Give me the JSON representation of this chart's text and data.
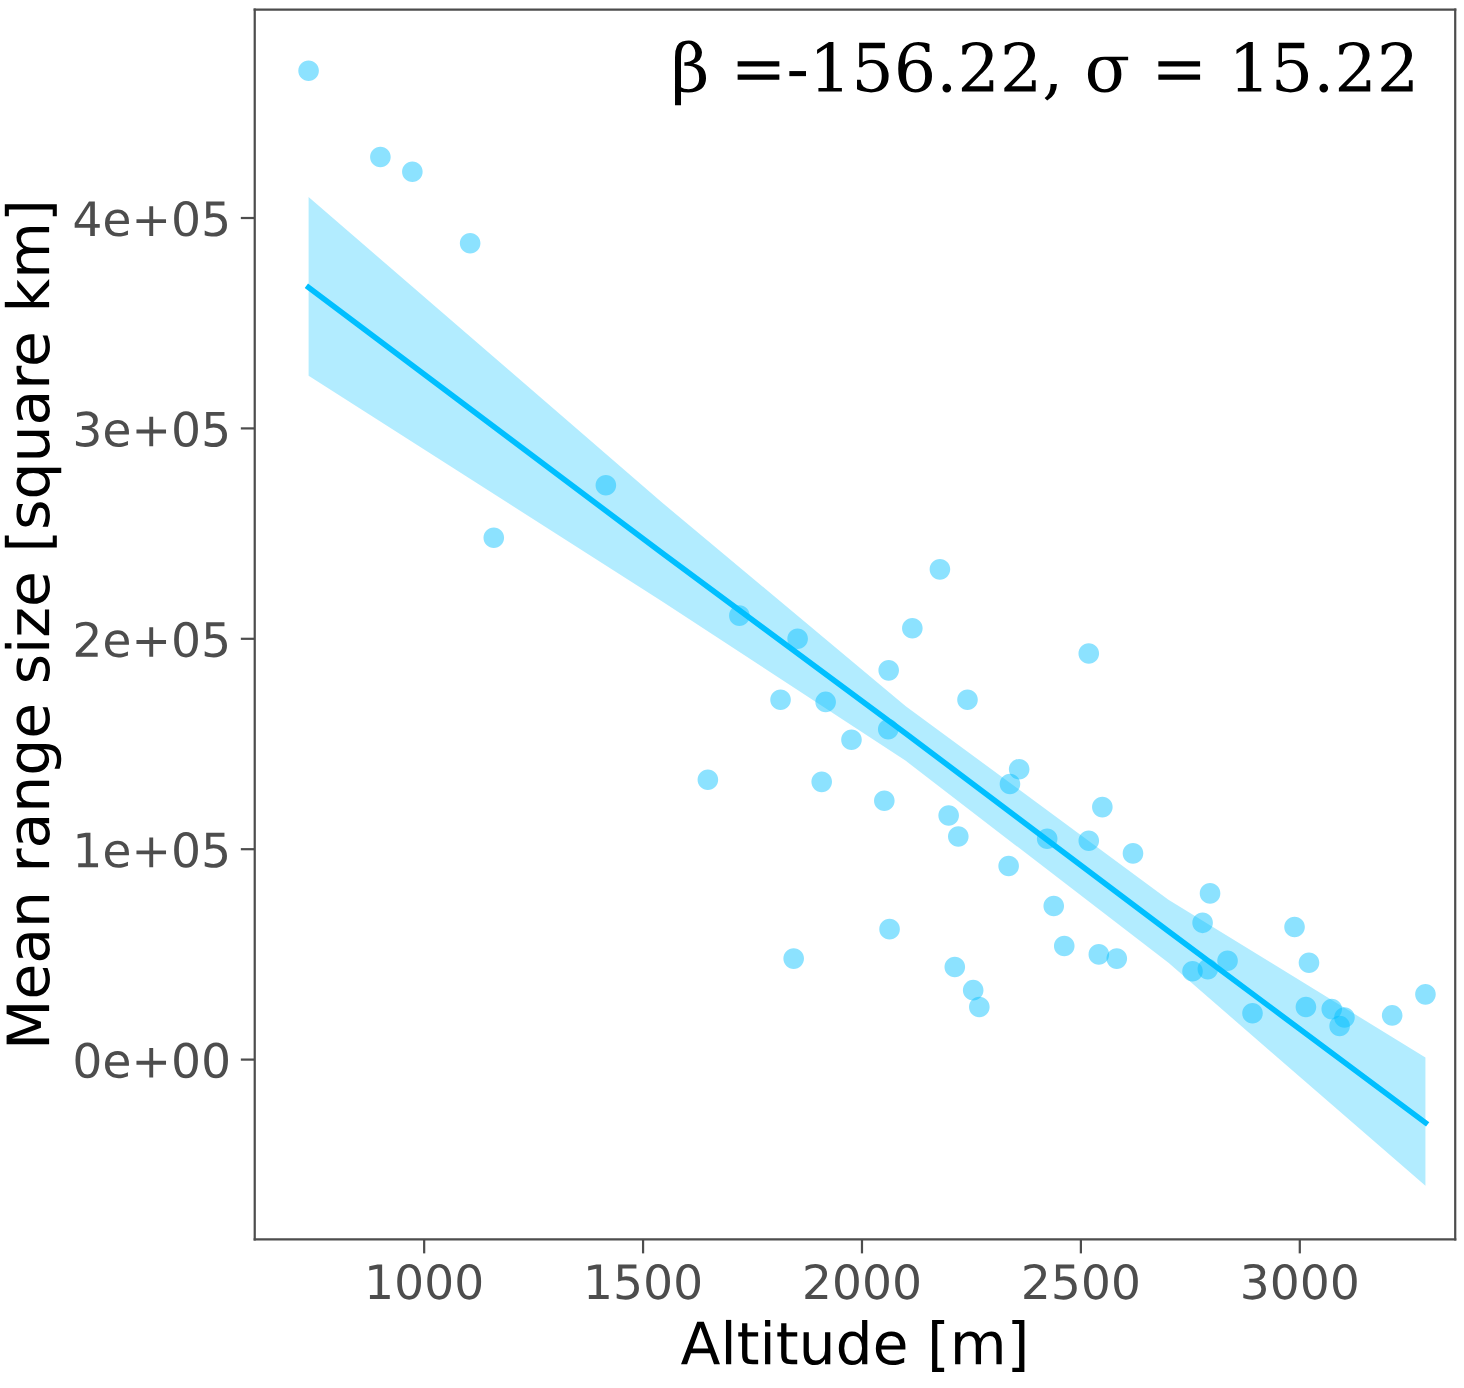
{
  "chart_data": {
    "type": "scatter",
    "xlabel": "Altitude [m]",
    "ylabel": "Mean range size [square km]",
    "annotations": [
      "β =-156.22, σ = 15.22"
    ],
    "xlim": [
      613,
      3355
    ],
    "ylim": [
      -85500,
      499000
    ],
    "xticks": [
      1000,
      1500,
      2000,
      2500,
      3000
    ],
    "yticks": [
      {
        "value": 0,
        "label": "0e+00"
      },
      {
        "value": 100000,
        "label": "1e+05"
      },
      {
        "value": 200000,
        "label": "2e+05"
      },
      {
        "value": 300000,
        "label": "3e+05"
      },
      {
        "value": 400000,
        "label": "4e+05"
      }
    ],
    "grid": false,
    "legend": false,
    "marker": "circle",
    "series": [
      {
        "color": "#00bfff",
        "x": [
          736,
          900,
          973,
          1105,
          1159,
          1415,
          1648,
          2178,
          1720,
          1853,
          2115,
          2518,
          2061,
          1814,
          1917,
          2241,
          2060,
          1976,
          2359,
          1908,
          2338,
          2549,
          2051,
          2198,
          2220,
          2423,
          2518,
          2619,
          2335,
          2795,
          2438,
          2778,
          2988,
          2063,
          2462,
          2541,
          2582,
          1844,
          3021,
          2835,
          2212,
          2790,
          2755,
          2254,
          3287,
          2268,
          3014,
          3073,
          2892,
          3211,
          3102,
          3091
        ],
        "values": [
          470000,
          429000,
          422000,
          388000,
          248000,
          273000,
          133000,
          233000,
          211000,
          200000,
          205000,
          193000,
          185000,
          171000,
          170000,
          171000,
          157000,
          152000,
          138000,
          132000,
          131000,
          120000,
          123000,
          116000,
          106000,
          105000,
          104000,
          98000,
          92000,
          79000,
          73000,
          65000,
          63000,
          62000,
          54000,
          50000,
          48000,
          48000,
          46000,
          47000,
          44000,
          43000,
          42000,
          33000,
          31000,
          25000,
          25000,
          24000,
          22000,
          21000,
          20000,
          16000
        ]
      },
      {
        "type": "line",
        "color": "#00bfff",
        "line_style": "solid",
        "marker": "none",
        "x": [
          736,
          1542,
          2100,
          2700,
          3287
        ],
        "values": [
          367000,
          241000,
          155000,
          61000,
          -30000
        ],
        "lower": [
          325000,
          218000,
          142000,
          46000,
          -60000
        ],
        "upper": [
          410000,
          265000,
          168000,
          76000,
          1000
        ]
      }
    ]
  }
}
